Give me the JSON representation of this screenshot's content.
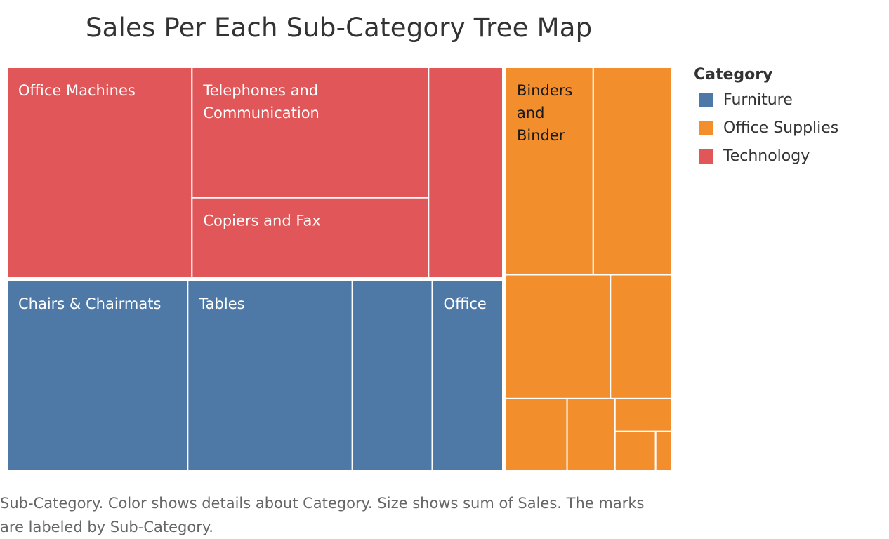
{
  "title": "Sales Per Each Sub-Category Tree Map",
  "caption": "Sub-Category.  Color shows details about Category.  Size shows sum of Sales.  The marks are labeled by Sub-Category.",
  "legend": {
    "title": "Category",
    "items": [
      {
        "label": "Furniture",
        "color": "#4e79a7"
      },
      {
        "label": "Office Supplies",
        "color": "#f28e2b"
      },
      {
        "label": "Technology",
        "color": "#e15759"
      }
    ]
  },
  "chart_data": {
    "type": "treemap",
    "size_measure": "sum of Sales",
    "color_by": "Category",
    "legend_position": "right",
    "groups": [
      {
        "category": "Technology",
        "color": "#e15759",
        "items": [
          {
            "label": "Office Machines",
            "relative_size": 27.9
          },
          {
            "label": "Telephones and Communication",
            "relative_size": 22.1
          },
          {
            "label": "Copiers and Fax",
            "relative_size": 13.6
          },
          {
            "label": "",
            "relative_size": 11.2
          }
        ]
      },
      {
        "category": "Furniture",
        "color": "#4e79a7",
        "items": [
          {
            "label": "Chairs & Chairmats",
            "relative_size": 26.9
          },
          {
            "label": "Tables",
            "relative_size": 24.5
          },
          {
            "label": "",
            "relative_size": 11.9
          },
          {
            "label": "Office",
            "relative_size": 10.5
          }
        ]
      },
      {
        "category": "Office Supplies",
        "color": "#f28e2b",
        "items": [
          {
            "label": "Binders and Binder",
            "relative_size": 14.7
          },
          {
            "label": "",
            "relative_size": 13.1
          },
          {
            "label": "",
            "relative_size": 10.5
          },
          {
            "label": "",
            "relative_size": 6.1
          },
          {
            "label": "",
            "relative_size": 3.6
          },
          {
            "label": "",
            "relative_size": 2.8
          },
          {
            "label": "",
            "relative_size": 1.5
          },
          {
            "label": "",
            "relative_size": 1.3
          },
          {
            "label": "",
            "relative_size": 0.5
          }
        ]
      }
    ]
  }
}
